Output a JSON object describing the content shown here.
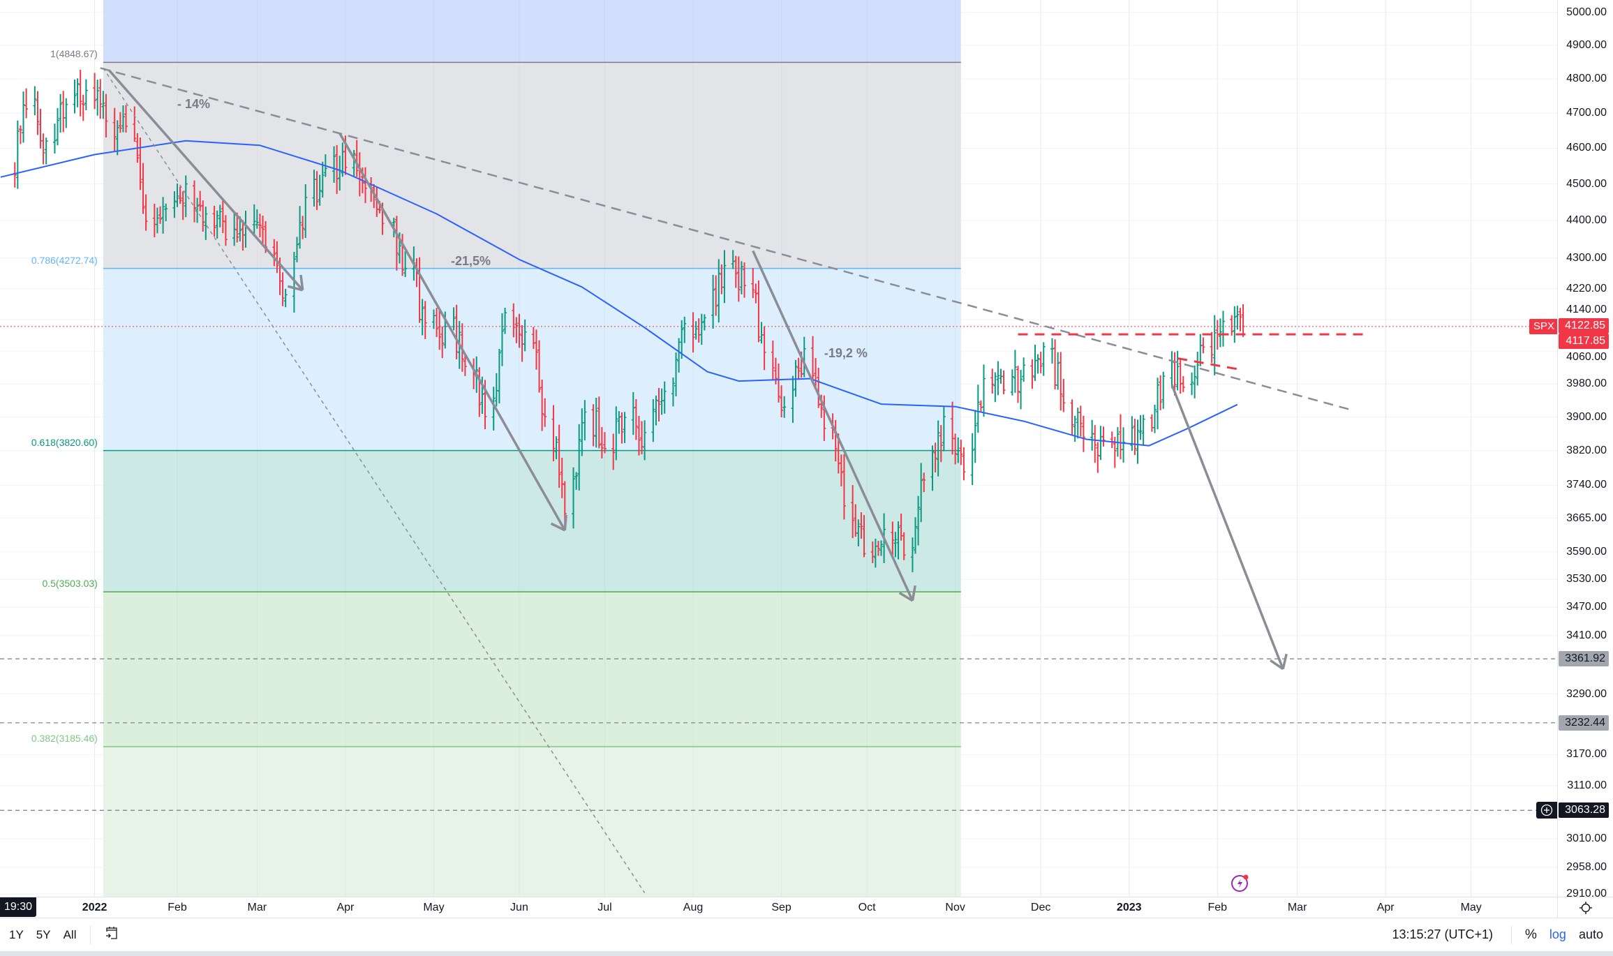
{
  "chart_data": {
    "type": "ohlc",
    "symbol": "SPX",
    "scale": "log",
    "price_ticks": [
      5000,
      4900,
      4800,
      4700,
      4600,
      4500,
      4400,
      4300,
      4220,
      4140,
      4060,
      3980,
      3900,
      3820,
      3740,
      3665,
      3590,
      3530,
      3470,
      3410,
      3290,
      3170,
      3110,
      3010,
      2958,
      2910
    ],
    "price_tick_labels": [
      "5000.00",
      "4900.00",
      "4800.00",
      "4700.00",
      "4600.00",
      "4500.00",
      "4400.00",
      "4300.00",
      "4220.00",
      "4140.00",
      "4060.00",
      "3980.00",
      "3900.00",
      "3820.00",
      "3740.00",
      "3665.00",
      "3590.00",
      "3530.00",
      "3470.00",
      "3410.00",
      "3290.00",
      "3170.00",
      "3110.00",
      "3010.00",
      "2958.00",
      "2910.00"
    ],
    "time_ticks": [
      {
        "label": "2022",
        "date": "2022-01-03",
        "bold": true
      },
      {
        "label": "Feb",
        "date": "2022-02-01"
      },
      {
        "label": "Mar",
        "date": "2022-03-01"
      },
      {
        "label": "Apr",
        "date": "2022-04-01"
      },
      {
        "label": "May",
        "date": "2022-05-02"
      },
      {
        "label": "Jun",
        "date": "2022-06-01"
      },
      {
        "label": "Jul",
        "date": "2022-07-01"
      },
      {
        "label": "Aug",
        "date": "2022-08-01"
      },
      {
        "label": "Sep",
        "date": "2022-09-01"
      },
      {
        "label": "Oct",
        "date": "2022-10-01"
      },
      {
        "label": "Nov",
        "date": "2022-11-01"
      },
      {
        "label": "Dec",
        "date": "2022-12-01"
      },
      {
        "label": "2023",
        "date": "2023-01-01",
        "bold": true
      },
      {
        "label": "Feb",
        "date": "2023-02-01"
      },
      {
        "label": "Mar",
        "date": "2023-03-01"
      },
      {
        "label": "Apr",
        "date": "2023-04-01"
      },
      {
        "label": "May",
        "date": "2023-05-01"
      }
    ],
    "weekly_closes": [
      [
        "2021-12-03",
        4538
      ],
      [
        "2021-12-10",
        4712
      ],
      [
        "2021-12-17",
        4620
      ],
      [
        "2021-12-24",
        4725
      ],
      [
        "2021-12-31",
        4766
      ],
      [
        "2022-01-07",
        4677
      ],
      [
        "2022-01-14",
        4662
      ],
      [
        "2022-01-21",
        4398
      ],
      [
        "2022-01-28",
        4432
      ],
      [
        "2022-02-04",
        4500
      ],
      [
        "2022-02-11",
        4418
      ],
      [
        "2022-02-18",
        4349
      ],
      [
        "2022-02-25",
        4385
      ],
      [
        "2022-03-04",
        4329
      ],
      [
        "2022-03-11",
        4204
      ],
      [
        "2022-03-18",
        4463
      ],
      [
        "2022-03-25",
        4543
      ],
      [
        "2022-04-01",
        4546
      ],
      [
        "2022-04-08",
        4488
      ],
      [
        "2022-04-14",
        4392
      ],
      [
        "2022-04-22",
        4272
      ],
      [
        "2022-04-29",
        4132
      ],
      [
        "2022-05-06",
        4123
      ],
      [
        "2022-05-13",
        4023
      ],
      [
        "2022-05-20",
        3901
      ],
      [
        "2022-05-27",
        4158
      ],
      [
        "2022-06-03",
        4109
      ],
      [
        "2022-06-10",
        3901
      ],
      [
        "2022-06-17",
        3675
      ],
      [
        "2022-06-24",
        3912
      ],
      [
        "2022-07-01",
        3825
      ],
      [
        "2022-07-08",
        3899
      ],
      [
        "2022-07-15",
        3863
      ],
      [
        "2022-07-22",
        3962
      ],
      [
        "2022-07-29",
        4130
      ],
      [
        "2022-08-05",
        4145
      ],
      [
        "2022-08-12",
        4280
      ],
      [
        "2022-08-19",
        4228
      ],
      [
        "2022-08-26",
        4058
      ],
      [
        "2022-09-02",
        3924
      ],
      [
        "2022-09-09",
        4067
      ],
      [
        "2022-09-16",
        3873
      ],
      [
        "2022-09-23",
        3693
      ],
      [
        "2022-09-30",
        3586
      ],
      [
        "2022-10-07",
        3640
      ],
      [
        "2022-10-14",
        3583
      ],
      [
        "2022-10-21",
        3752
      ],
      [
        "2022-10-28",
        3901
      ],
      [
        "2022-11-04",
        3771
      ],
      [
        "2022-11-11",
        3993
      ],
      [
        "2022-11-18",
        3965
      ],
      [
        "2022-11-25",
        4026
      ],
      [
        "2022-12-02",
        4072
      ],
      [
        "2022-12-09",
        3934
      ],
      [
        "2022-12-16",
        3852
      ],
      [
        "2022-12-23",
        3845
      ],
      [
        "2022-12-30",
        3840
      ],
      [
        "2023-01-06",
        3895
      ],
      [
        "2023-01-13",
        3999
      ],
      [
        "2023-01-20",
        3972
      ],
      [
        "2023-01-27",
        4071
      ],
      [
        "2023-02-03",
        4136
      ],
      [
        "2023-02-10",
        4123
      ]
    ],
    "moving_average": [
      [
        "2021-12-01",
        4519
      ],
      [
        "2022-01-03",
        4582
      ],
      [
        "2022-02-04",
        4621
      ],
      [
        "2022-03-02",
        4608
      ],
      [
        "2022-03-30",
        4538
      ],
      [
        "2022-05-03",
        4418
      ],
      [
        "2022-06-01",
        4296
      ],
      [
        "2022-06-23",
        4224
      ],
      [
        "2022-07-15",
        4120
      ],
      [
        "2022-08-06",
        4010
      ],
      [
        "2022-08-17",
        3987
      ],
      [
        "2022-09-11",
        3993
      ],
      [
        "2022-10-06",
        3931
      ],
      [
        "2022-11-01",
        3925
      ],
      [
        "2022-11-25",
        3890
      ],
      [
        "2022-12-17",
        3847
      ],
      [
        "2023-01-08",
        3832
      ],
      [
        "2023-01-22",
        3874
      ],
      [
        "2023-02-08",
        3930
      ]
    ],
    "ma_color": "#2962ff",
    "up_color": "#089981",
    "down_color": "#f23645",
    "fib": {
      "start_date": "2022-01-06",
      "end_date": "2022-11-03",
      "top_extension_color": "#d1defc",
      "levels": [
        {
          "label": "1(4848.67)",
          "ratio": 1,
          "price": 4848.67,
          "color": "#787b86",
          "fill": "#e3e4e7"
        },
        {
          "label": "0.786(4272.74)",
          "ratio": 0.786,
          "price": 4272.74,
          "color": "#64b5f6",
          "fill": "#ddeefc"
        },
        {
          "label": "0.618(3820.60)",
          "ratio": 0.618,
          "price": 3820.6,
          "color": "#089981",
          "fill": "#cde9e6"
        },
        {
          "label": "0.5(3503.03)",
          "ratio": 0.5,
          "price": 3503.03,
          "color": "#4caf50",
          "fill": "#dcefdd"
        },
        {
          "label": "0.382(3185.46)",
          "ratio": 0.382,
          "price": 3185.46,
          "color": "#81c784",
          "fill": "#e7f3e7"
        }
      ]
    },
    "trend_lines": [
      {
        "from": [
          "2022-01-05",
          4832
        ],
        "to": [
          "2023-03-20",
          3917
        ],
        "style": "dashed",
        "color": "#8a8d96"
      },
      {
        "from": [
          "2022-01-06",
          4832
        ],
        "to": [
          "2022-07-15",
          2912
        ],
        "style": "dotted",
        "color": "#8a8d96"
      }
    ],
    "arrows": [
      {
        "from": [
          "2022-01-08",
          4826
        ],
        "to": [
          "2022-03-17",
          4216
        ]
      },
      {
        "from": [
          "2022-03-30",
          4642
        ],
        "to": [
          "2022-06-17",
          3638
        ]
      },
      {
        "from": [
          "2022-08-22",
          4319
        ],
        "to": [
          "2022-10-17",
          3484
        ]
      },
      {
        "from": [
          "2023-01-16",
          3978
        ],
        "to": [
          "2023-02-24",
          3341
        ]
      }
    ],
    "red_lines": [
      {
        "from": [
          "2022-11-23",
          4103
        ],
        "to": [
          "2023-03-25",
          4103
        ]
      },
      {
        "from": [
          "2023-01-18",
          4043
        ],
        "to": [
          "2023-02-10",
          4014
        ]
      }
    ],
    "annotations": [
      {
        "text": "- 14%",
        "date": "2022-02-01",
        "price": 4725
      },
      {
        "text": "-21,5%",
        "date": "2022-05-08",
        "price": 4290
      },
      {
        "text": "-19,2 %",
        "date": "2022-09-16",
        "price": 4055
      }
    ],
    "horizontal_levels": [
      {
        "price": 3361.92,
        "label": "3361.92",
        "style": "gray"
      },
      {
        "price": 3232.44,
        "label": "3232.44",
        "style": "gray"
      },
      {
        "price": 3063.28,
        "label": "3063.28",
        "style": "dark"
      }
    ],
    "last_price": {
      "symbol": "SPX",
      "price": 4122.85,
      "label": "4122.85",
      "second_label": "4117.85",
      "color": "#f23645"
    }
  },
  "ui": {
    "crosshair_time": "19:30",
    "ranges": [
      "1Y",
      "5Y",
      "All"
    ],
    "clock": "13:15:27 (UTC+1)",
    "percent": "%",
    "log": "log",
    "auto": "auto",
    "log_color": "#2962ff"
  }
}
